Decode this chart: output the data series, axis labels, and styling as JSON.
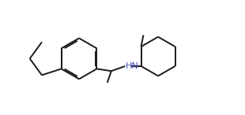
{
  "background": "#ffffff",
  "line_color": "#1a1a1a",
  "hn_color": "#4455bb",
  "line_width": 1.4,
  "font_size": 8.0,
  "figsize": [
    3.1,
    1.46
  ],
  "dpi": 100,
  "xlim": [
    -0.5,
    10.5
  ],
  "ylim": [
    0.2,
    5.0
  ]
}
